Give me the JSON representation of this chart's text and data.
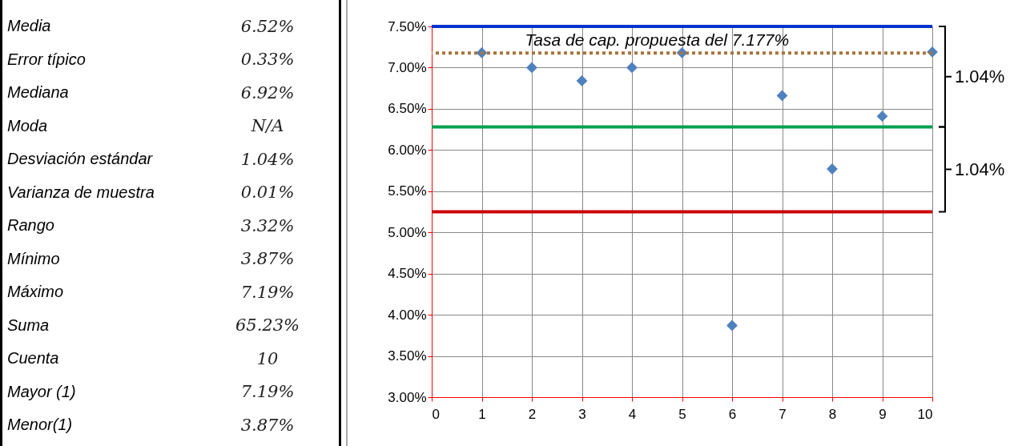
{
  "chart_data": [
    {
      "type": "other",
      "annotations": [
        "Media",
        "6.52%",
        "Error típico",
        "0.33%",
        "Mediana",
        "6.92%",
        "Moda",
        "N/A",
        "Desviación estándar",
        "1.04%",
        "Varianza de muestra",
        "0.01%",
        "Rango",
        "3.32%",
        "Mínimo",
        "3.87%",
        "Máximo",
        "7.19%",
        "Suma",
        "65.23%",
        "Cuenta",
        "10",
        "Mayor (1)",
        "7.19%",
        "Menor(1)",
        "3.87%"
      ]
    },
    {
      "type": "scatter",
      "x": [
        1,
        2,
        3,
        4,
        5,
        6,
        7,
        8,
        9,
        10
      ],
      "series": [
        {
          "color": "#4f81bd",
          "values": [
            7.18,
            7.0,
            6.84,
            7.0,
            7.18,
            3.87,
            6.66,
            5.77,
            6.41,
            7.19
          ]
        }
      ],
      "marker": "diamond",
      "grid": true,
      "legend": false,
      "xlim": [
        0,
        10
      ],
      "xticks": [
        0,
        1,
        2,
        3,
        4,
        5,
        6,
        7,
        8,
        9,
        10
      ],
      "ylim": [
        3,
        7.5
      ],
      "yticks": [
        {
          "value": 3,
          "label": "3.00%"
        },
        {
          "value": 3.5,
          "label": "3.50%"
        },
        {
          "value": 4,
          "label": "4.00%"
        },
        {
          "value": 4.5,
          "label": "4.50%"
        },
        {
          "value": 5,
          "label": "5.00%"
        },
        {
          "value": 5.5,
          "label": "5.50%"
        },
        {
          "value": 6,
          "label": "6.00%"
        },
        {
          "value": 6.5,
          "label": "6.50%"
        },
        {
          "value": 7,
          "label": "7.00%"
        },
        {
          "value": 7.5,
          "label": "7.50%"
        }
      ],
      "ref_lines": [
        {
          "axis": "y",
          "value": 7.5,
          "label": null,
          "color": "#0033cc"
        },
        {
          "axis": "y",
          "value": 6.28,
          "label": null,
          "color": "#00a050"
        },
        {
          "axis": "y",
          "value": 5.25,
          "label": null,
          "color": "#cc0000"
        },
        {
          "axis": "y",
          "value": 7.177,
          "label": "Tasa de cap. propuesta del 7.177%",
          "color": "#a8743c",
          "line_style": "dotted"
        }
      ],
      "annotations": [
        "1.04%",
        "1.04%"
      ]
    }
  ]
}
